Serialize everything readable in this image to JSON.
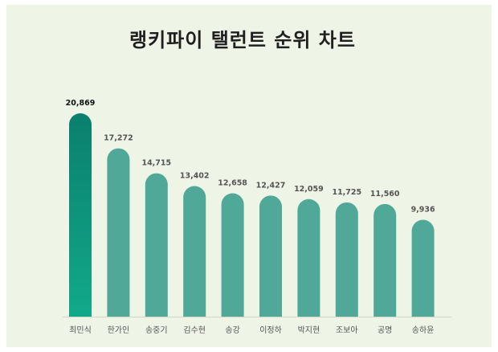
{
  "chart_data": {
    "type": "bar",
    "title": "랭키파이 탤런트 순위 차트",
    "categories": [
      "최민식",
      "한가인",
      "송중기",
      "김수현",
      "송강",
      "이정하",
      "박지현",
      "조보아",
      "공명",
      "송하윤"
    ],
    "values": [
      20869,
      17272,
      14715,
      13402,
      12658,
      12427,
      12059,
      11725,
      11560,
      9936
    ],
    "value_labels": [
      "20,869",
      "17,272",
      "14,715",
      "13,402",
      "12,658",
      "12,427",
      "12,059",
      "11,725",
      "11,560",
      "9,936"
    ],
    "xlabel": "",
    "ylabel": "",
    "grid": false,
    "legend": "none",
    "colors": {
      "bar": "#4fa898",
      "highlight_top": "#0a7f6e",
      "highlight_bottom": "#12a98a",
      "background": "#eef4e6",
      "baseline": "#cfd8c6",
      "label_text": "#555555",
      "value_text": "#555555",
      "highlight_value_text": "#111111"
    }
  }
}
